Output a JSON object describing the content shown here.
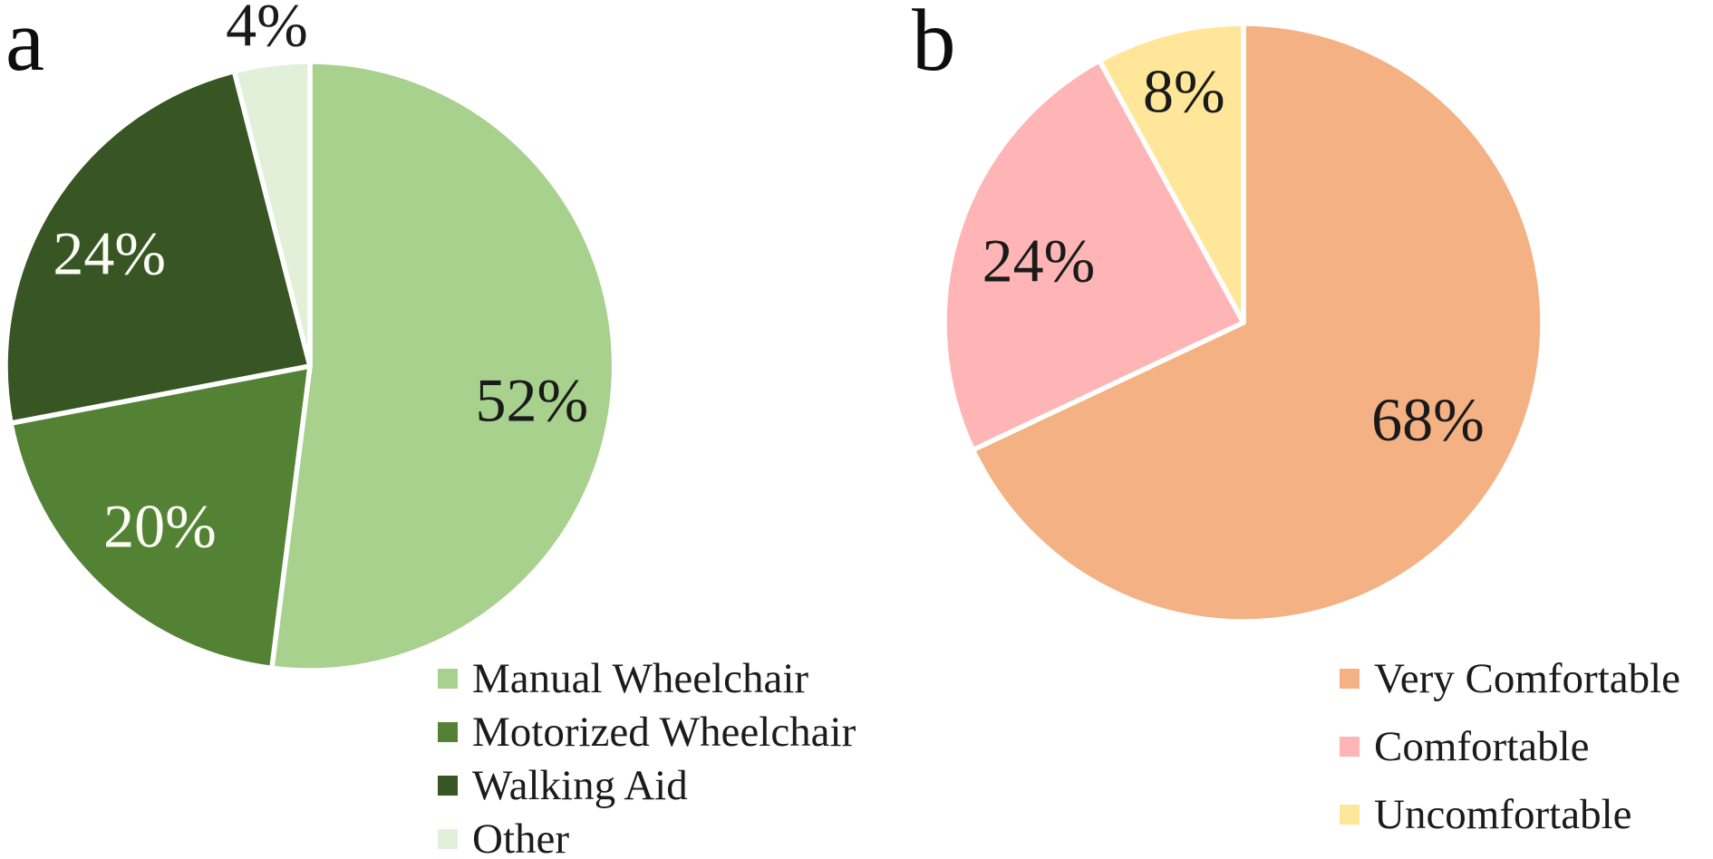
{
  "figure": {
    "panel_labels": [
      "a",
      "b"
    ]
  },
  "chart_data": [
    {
      "type": "pie",
      "panel": "a",
      "title": "",
      "categories": [
        "Manual Wheelchair",
        "Motorized Wheelchair",
        "Walking Aid",
        "Other"
      ],
      "values": [
        52,
        20,
        24,
        4
      ],
      "data_labels": [
        "52%",
        "20%",
        "24%",
        "4%"
      ],
      "colors": [
        "#A9D18E",
        "#548235",
        "#375623",
        "#E2EFD9"
      ],
      "label_colors": [
        "#1A1A1A",
        "#FDFDF6",
        "#FDFDF6",
        "#1A1A1A"
      ],
      "start_angle_deg": 0,
      "direction": "clockwise",
      "slice_border_color": "#FFFFFF",
      "legend_position": "bottom-right",
      "legend": [
        "Manual Wheelchair",
        "Motorized Wheelchair",
        "Walking Aid",
        "Other"
      ]
    },
    {
      "type": "pie",
      "panel": "b",
      "title": "",
      "categories": [
        "Very Comfortable",
        "Comfortable",
        "Uncomfortable"
      ],
      "values": [
        68,
        24,
        8
      ],
      "data_labels": [
        "68%",
        "24%",
        "8%"
      ],
      "colors": [
        "#F4B183",
        "#FFB5B6",
        "#FFE699"
      ],
      "label_colors": [
        "#1A1A1A",
        "#1A1A1A",
        "#1A1A1A"
      ],
      "start_angle_deg": 0,
      "direction": "clockwise",
      "slice_border_color": "#FFFFFF",
      "legend_position": "bottom-right",
      "legend": [
        "Very Comfortable",
        "Comfortable",
        "Uncomfortable"
      ]
    }
  ]
}
